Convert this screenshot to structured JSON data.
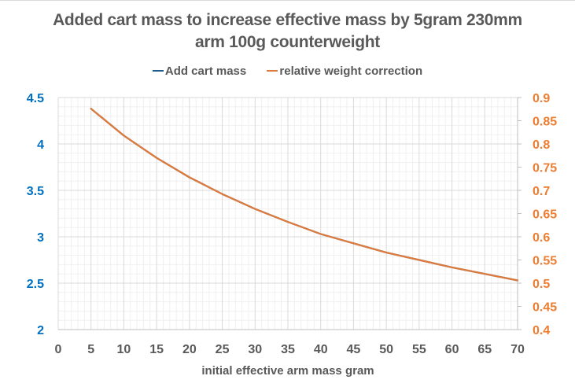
{
  "chart_data": {
    "type": "line",
    "title": "Added cart mass to increase effective mass by 5gram 230mm arm 100g counterweight",
    "title_lines": [
      "Added cart mass to increase effective mass by 5gram 230mm",
      "arm 100g counterweight"
    ],
    "xlabel": "initial effective arm mass gram",
    "ylabel": "",
    "y2label": "",
    "xlim": [
      0,
      70
    ],
    "ylim": [
      2,
      4.5
    ],
    "y2lim": [
      0.4,
      0.9
    ],
    "x_ticks": [
      "0",
      "5",
      "10",
      "15",
      "20",
      "25",
      "30",
      "35",
      "40",
      "45",
      "50",
      "55",
      "60",
      "65",
      "70"
    ],
    "y_ticks": [
      "2",
      "2.5",
      "3",
      "3.5",
      "4",
      "4.5"
    ],
    "y2_ticks": [
      "0.4",
      "0.45",
      "0.5",
      "0.55",
      "0.6",
      "0.65",
      "0.7",
      "0.75",
      "0.8",
      "0.85",
      "0.9"
    ],
    "grid": true,
    "legend_position": "top",
    "x": [
      5,
      10,
      15,
      20,
      25,
      30,
      35,
      40,
      45,
      50,
      55,
      60,
      65,
      70
    ],
    "series": [
      {
        "name": "Add cart mass",
        "axis": "left",
        "color": "#1f5c8b",
        "values": [
          4.38,
          4.09,
          3.85,
          3.64,
          3.46,
          3.3,
          3.16,
          3.03,
          2.93,
          2.83,
          2.75,
          2.67,
          2.6,
          2.53
        ]
      },
      {
        "name": "relative weight correction",
        "axis": "right",
        "color": "#e07a3a",
        "values": [
          0.876,
          0.818,
          0.77,
          0.728,
          0.692,
          0.66,
          0.632,
          0.606,
          0.586,
          0.566,
          0.55,
          0.534,
          0.52,
          0.506
        ]
      }
    ]
  },
  "colors": {
    "left_axis": "#0070c0",
    "right_axis": "#ed7d31",
    "text": "#595959",
    "grid_major": "#d9d9d9",
    "grid_minor": "#f0f0f0"
  }
}
